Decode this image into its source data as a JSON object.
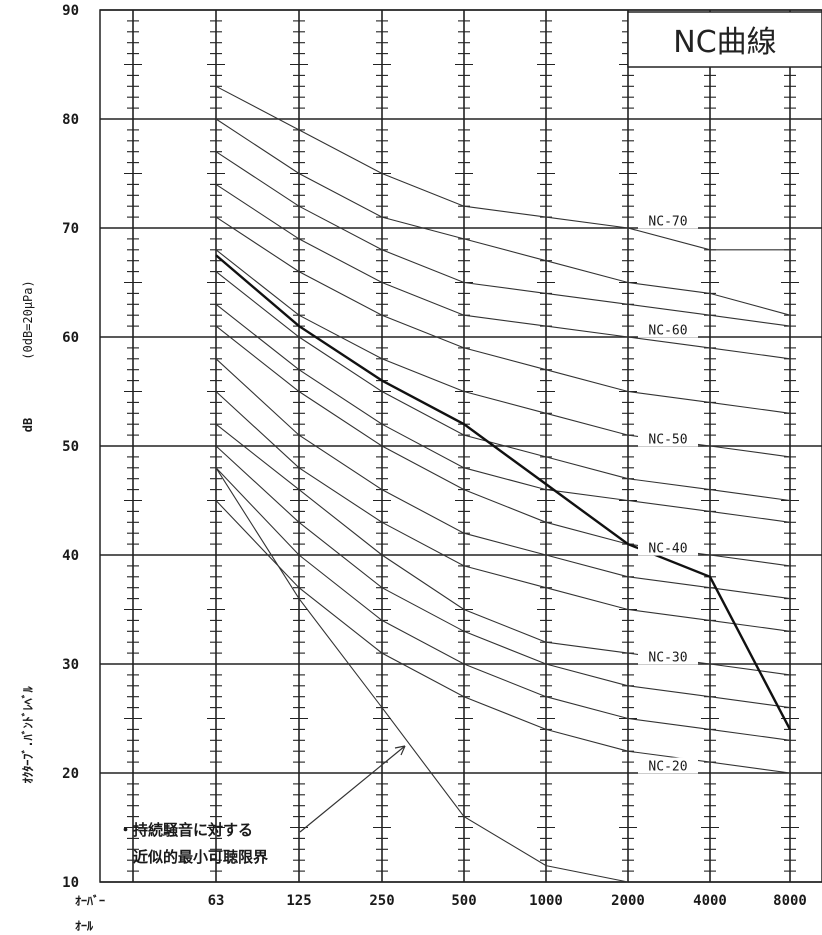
{
  "chart_data": {
    "type": "line",
    "title": "NC曲線",
    "ylabel_unit": "(0dB=20μPa)",
    "ylabel": "dB",
    "ylabel_sub": "ｵｸﾀｰﾌﾞ.ﾊﾞﾝﾄﾞﾚﾍﾞﾙ",
    "xlabel_overall_top": "ｵｰﾊﾞｰ",
    "xlabel_overall_bottom": "ｵｰﾙ",
    "ylim": [
      10,
      90
    ],
    "yticks": [
      "10",
      "20",
      "30",
      "40",
      "50",
      "60",
      "70",
      "80",
      "90"
    ],
    "categories": [
      "63",
      "125",
      "250",
      "500",
      "1000",
      "2000",
      "4000",
      "8000"
    ],
    "series": [
      {
        "name": "NC-70",
        "values": [
          83,
          79,
          75,
          72,
          71,
          70,
          68,
          68
        ]
      },
      {
        "name": "",
        "values": [
          80,
          75,
          71,
          69,
          67,
          65,
          64,
          62
        ]
      },
      {
        "name": "",
        "values": [
          77,
          72,
          68,
          65,
          64,
          63,
          62,
          61
        ]
      },
      {
        "name": "NC-60",
        "values": [
          74,
          69,
          65,
          62,
          61,
          60,
          59,
          58
        ]
      },
      {
        "name": "",
        "values": [
          71,
          66,
          62,
          59,
          57,
          55,
          54,
          53
        ]
      },
      {
        "name": "NC-50",
        "values": [
          68,
          62,
          58,
          55,
          53,
          51,
          50,
          49
        ]
      },
      {
        "name": "",
        "values": [
          66,
          60,
          55,
          51,
          49,
          47,
          46,
          45
        ]
      },
      {
        "name": "",
        "values": [
          63,
          57,
          52,
          48,
          46,
          45,
          44,
          43
        ]
      },
      {
        "name": "NC-40",
        "values": [
          61,
          55,
          50,
          46,
          43,
          41,
          40,
          39
        ]
      },
      {
        "name": "",
        "values": [
          58,
          51,
          46,
          42,
          40,
          38,
          37,
          36
        ]
      },
      {
        "name": "",
        "values": [
          55,
          48,
          43,
          39,
          37,
          35,
          34,
          33
        ]
      },
      {
        "name": "NC-30",
        "values": [
          52,
          46,
          40,
          35,
          32,
          31,
          30,
          29
        ]
      },
      {
        "name": "",
        "values": [
          50,
          43,
          37,
          33,
          30,
          28,
          27,
          26
        ]
      },
      {
        "name": "",
        "values": [
          48,
          40,
          34,
          30,
          27,
          25,
          24,
          23
        ]
      },
      {
        "name": "NC-20",
        "values": [
          45,
          37,
          31,
          27,
          24,
          22,
          21,
          20
        ]
      }
    ],
    "nc_labels": [
      {
        "text": "NC-70",
        "value": 70.5
      },
      {
        "text": "NC-60",
        "value": 60.5
      },
      {
        "text": "NC-50",
        "value": 50.5
      },
      {
        "text": "NC-40",
        "value": 40.5
      },
      {
        "text": "NC-30",
        "value": 30.5
      },
      {
        "text": "NC-20",
        "value": 20.5
      }
    ],
    "criterion_curve": {
      "values": [
        67.5,
        61,
        56,
        52,
        46.5,
        41,
        38,
        24
      ]
    },
    "threshold_curve": {
      "values": [
        48,
        36,
        26,
        16,
        11.5,
        10,
        null,
        null
      ]
    },
    "annotation": {
      "line1": "・持続騒音に対する",
      "line2": "近似的最小可聴限界"
    },
    "grid": true
  }
}
